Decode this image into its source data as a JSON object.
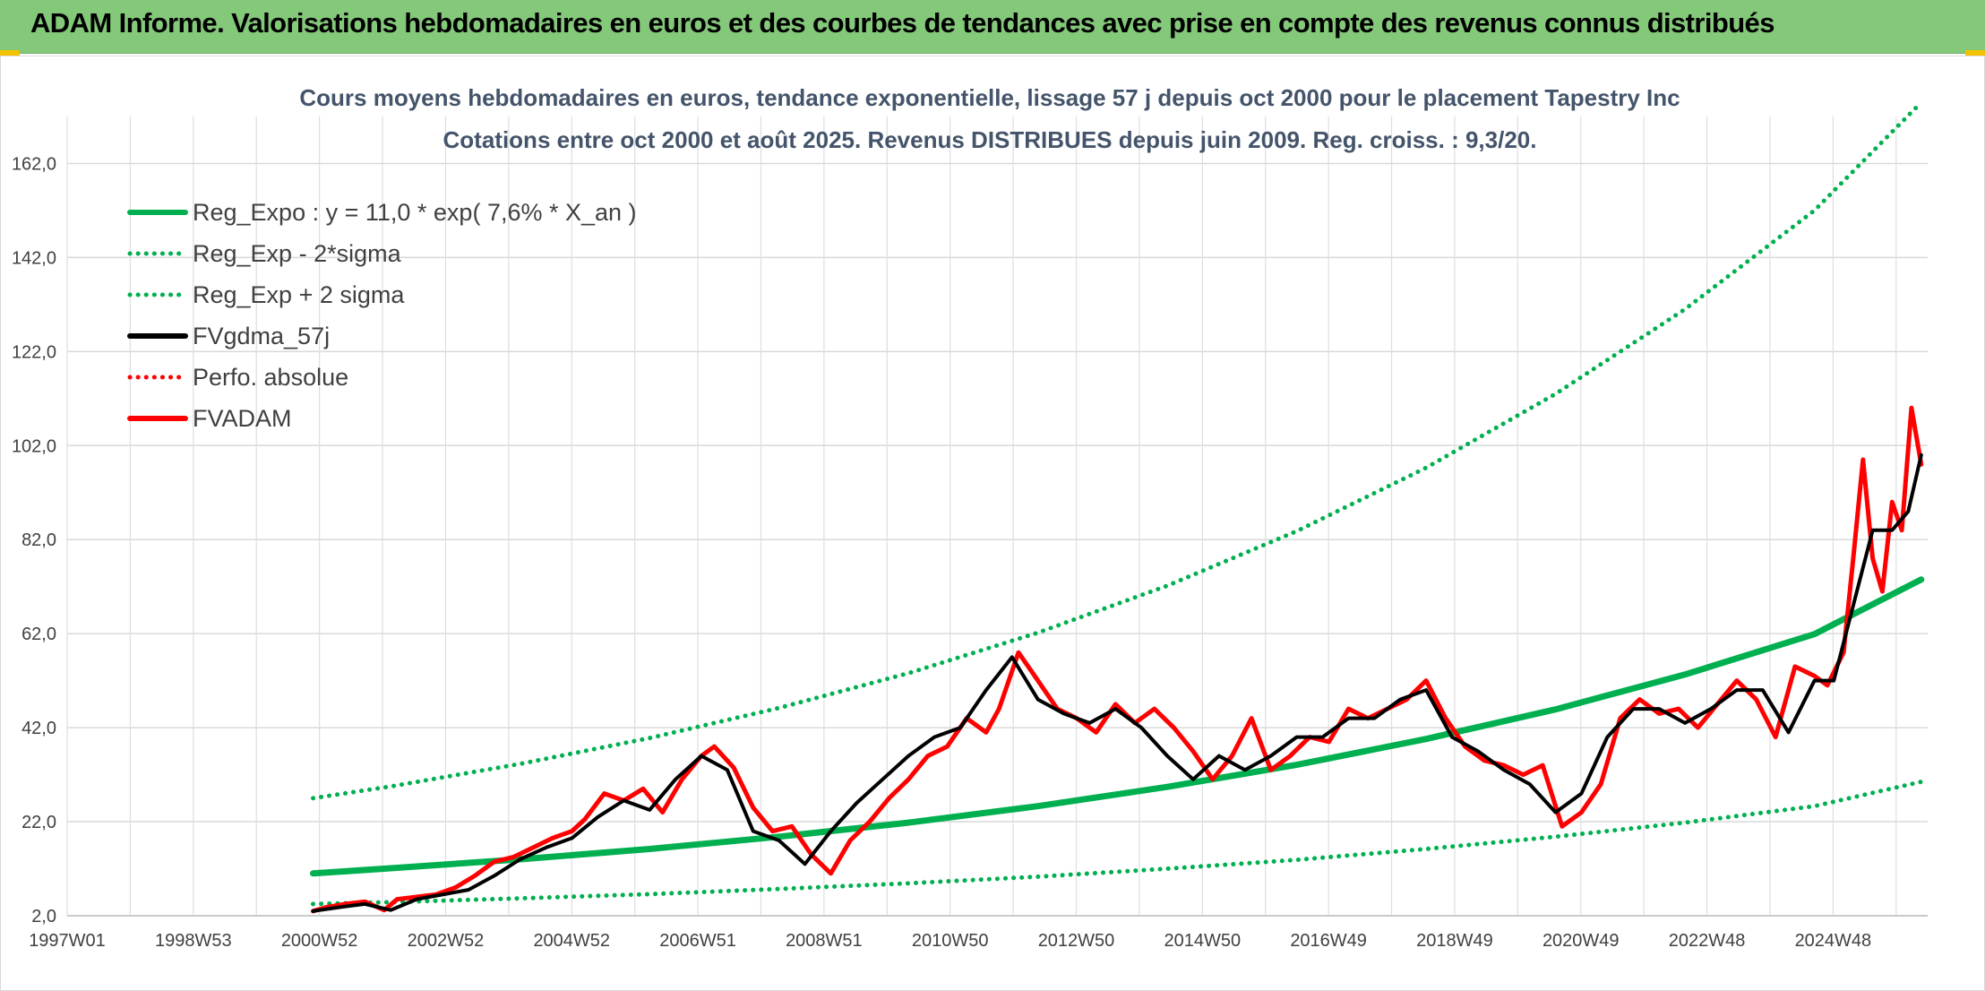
{
  "header": {
    "title": "ADAM Informe. Valorisations hebdomadaires en euros et des courbes de tendances avec prise en compte des revenus connus distribués"
  },
  "chart_data": {
    "type": "line",
    "title": "Cours moyens hebdomadaires en euros, tendance exponentielle, lissage 57 j depuis oct 2000 pour le placement Tapestry Inc",
    "subtitle": "Cotations entre oct 2000 et août 2025. Revenus DISTRIBUES depuis juin 2009. Reg. croiss. : 9,3/20.",
    "xlabel": "",
    "ylabel": "",
    "x_tick_labels": [
      "1997W01",
      "1998W53",
      "2000W52",
      "2002W52",
      "2004W52",
      "2006W51",
      "2008W51",
      "2010W50",
      "2012W50",
      "2014W50",
      "2016W49",
      "2018W49",
      "2020W49",
      "2022W48",
      "2024W48"
    ],
    "y_ticks": [
      "2,0",
      "22,0",
      "42,0",
      "62,0",
      "82,0",
      "102,0",
      "122,0",
      "142,0",
      "162,0"
    ],
    "ylim": [
      2,
      172
    ],
    "xlim": [
      1997.0,
      2025.75
    ],
    "grid": true,
    "legend_position": "top-left",
    "series": [
      {
        "name": "Reg_Expo : y = 11,0 * exp( 7,6% *  X_an )",
        "color": "#00b050",
        "style": "solid",
        "width": 7,
        "x": [
          2000.8,
          2002,
          2004,
          2006,
          2008,
          2010,
          2012,
          2014,
          2016,
          2018,
          2020,
          2022,
          2024,
          2025.65
        ],
        "y": [
          11.0,
          12.1,
          14.0,
          16.2,
          18.8,
          21.8,
          25.3,
          29.4,
          34.1,
          39.6,
          45.9,
          53.3,
          61.9,
          73.5
        ]
      },
      {
        "name": "Reg_Exp - 2*sigma",
        "color": "#00b050",
        "style": "dotted",
        "width": 5,
        "x": [
          2000.8,
          2002,
          2004,
          2006,
          2008,
          2010,
          2012,
          2014,
          2016,
          2018,
          2020,
          2022,
          2024,
          2025.65
        ],
        "y": [
          4.5,
          4.9,
          5.7,
          6.6,
          7.7,
          8.9,
          10.3,
          12.0,
          13.9,
          16.2,
          18.8,
          21.8,
          25.3,
          30.5
        ]
      },
      {
        "name": "Reg_Exp + 2 sigma",
        "color": "#00b050",
        "style": "dotted",
        "width": 5,
        "x": [
          2000.8,
          2002,
          2004,
          2006,
          2008,
          2010,
          2012,
          2014,
          2016,
          2018,
          2020,
          2022,
          2024,
          2025.65
        ],
        "y": [
          27.0,
          29.5,
          34.3,
          39.8,
          46.2,
          53.6,
          62.2,
          72.2,
          83.8,
          97.3,
          113.0,
          131.0,
          152.0,
          175.0
        ]
      },
      {
        "name": "FVgdma_57j",
        "color": "#000000",
        "style": "solid",
        "width": 4,
        "x": [
          2000.8,
          2001.2,
          2001.6,
          2002.0,
          2002.4,
          2002.8,
          2003.2,
          2003.6,
          2004.0,
          2004.4,
          2004.8,
          2005.2,
          2005.6,
          2006.0,
          2006.4,
          2006.8,
          2007.2,
          2007.6,
          2008.0,
          2008.4,
          2008.8,
          2009.2,
          2009.6,
          2010.0,
          2010.4,
          2010.8,
          2011.2,
          2011.6,
          2012.0,
          2012.4,
          2012.8,
          2013.2,
          2013.6,
          2014.0,
          2014.4,
          2014.8,
          2015.2,
          2015.6,
          2016.0,
          2016.4,
          2016.8,
          2017.2,
          2017.6,
          2018.0,
          2018.4,
          2018.8,
          2019.2,
          2019.6,
          2020.0,
          2020.4,
          2020.8,
          2021.2,
          2021.6,
          2022.0,
          2022.4,
          2022.8,
          2023.2,
          2023.6,
          2024.0,
          2024.3,
          2024.6,
          2024.9,
          2025.2,
          2025.45,
          2025.65
        ],
        "y": [
          3.0,
          3.8,
          4.5,
          3.2,
          5.5,
          6.5,
          7.5,
          10.5,
          14.0,
          16.5,
          18.5,
          23.0,
          26.5,
          24.5,
          31.0,
          36.0,
          33.0,
          20.0,
          18.0,
          13.0,
          20.0,
          26.0,
          31.0,
          36.0,
          40.0,
          42.0,
          50.0,
          57.0,
          48.0,
          45.0,
          43.0,
          46.0,
          42.0,
          36.0,
          31.0,
          36.0,
          33.0,
          36.0,
          40.0,
          40.0,
          44.0,
          44.0,
          48.0,
          50.0,
          40.0,
          37.0,
          33.0,
          30.0,
          24.0,
          28.0,
          40.0,
          46.0,
          46.0,
          43.0,
          46.0,
          50.0,
          50.0,
          41.0,
          52.0,
          52.0,
          68.0,
          84.0,
          84.0,
          88.0,
          100.0
        ]
      },
      {
        "name": "Perfo. absolue",
        "color": "#ff0000",
        "style": "dotted",
        "width": 4,
        "x": [],
        "y": []
      },
      {
        "name": "FVADAM",
        "color": "#ff0000",
        "style": "solid",
        "width": 5,
        "x": [
          2000.8,
          2001.0,
          2001.3,
          2001.6,
          2001.9,
          2002.1,
          2002.4,
          2002.7,
          2003.0,
          2003.3,
          2003.6,
          2003.9,
          2004.2,
          2004.5,
          2004.8,
          2005.0,
          2005.3,
          2005.6,
          2005.9,
          2006.2,
          2006.5,
          2006.8,
          2007.0,
          2007.3,
          2007.6,
          2007.9,
          2008.2,
          2008.5,
          2008.8,
          2009.1,
          2009.4,
          2009.7,
          2010.0,
          2010.3,
          2010.6,
          2010.9,
          2011.2,
          2011.4,
          2011.7,
          2012.0,
          2012.3,
          2012.6,
          2012.9,
          2013.2,
          2013.5,
          2013.8,
          2014.1,
          2014.4,
          2014.7,
          2015.0,
          2015.3,
          2015.6,
          2015.9,
          2016.2,
          2016.5,
          2016.8,
          2017.1,
          2017.4,
          2017.7,
          2018.0,
          2018.3,
          2018.6,
          2018.9,
          2019.2,
          2019.5,
          2019.8,
          2020.1,
          2020.4,
          2020.7,
          2021.0,
          2021.3,
          2021.6,
          2021.9,
          2022.2,
          2022.5,
          2022.8,
          2023.1,
          2023.4,
          2023.7,
          2024.0,
          2024.2,
          2024.45,
          2024.6,
          2024.75,
          2024.9,
          2025.05,
          2025.2,
          2025.35,
          2025.5,
          2025.65
        ],
        "y": [
          3.0,
          3.8,
          4.5,
          5.0,
          3.2,
          5.5,
          6.0,
          6.5,
          8.0,
          10.5,
          13.5,
          14.5,
          16.5,
          18.5,
          20.0,
          22.5,
          28.0,
          26.5,
          29.0,
          24.0,
          31.0,
          36.0,
          38.0,
          33.5,
          25.0,
          20.0,
          21.0,
          15.0,
          11.0,
          18.0,
          22.0,
          27.0,
          31.0,
          36.0,
          38.0,
          44.0,
          41.0,
          46.0,
          58.0,
          52.0,
          46.0,
          44.0,
          41.0,
          47.0,
          43.0,
          46.0,
          42.0,
          37.0,
          31.0,
          36.0,
          44.0,
          33.0,
          36.0,
          40.0,
          39.0,
          46.0,
          44.0,
          46.0,
          48.0,
          52.0,
          44.0,
          38.0,
          35.0,
          34.0,
          32.0,
          34.0,
          21.0,
          24.0,
          30.0,
          44.0,
          48.0,
          45.0,
          46.0,
          42.0,
          47.0,
          52.0,
          48.0,
          40.0,
          55.0,
          53.0,
          51.0,
          58.0,
          78.0,
          99.0,
          78.0,
          71.0,
          90.0,
          84.0,
          110.0,
          98.0
        ]
      }
    ]
  }
}
